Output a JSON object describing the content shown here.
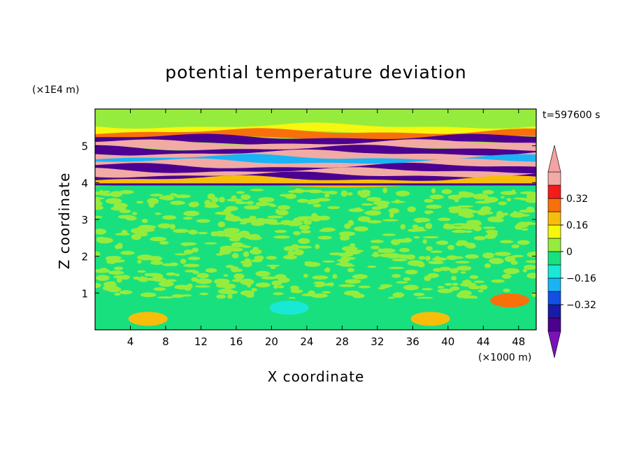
{
  "chart_data": {
    "type": "heatmap",
    "title": "potential temperature deviation",
    "xlabel": "X coordinate",
    "ylabel": "Z coordinate",
    "x_unit": "(×1000 m)",
    "y_unit": "(×1E4 m)",
    "time_label": "t=597600 s",
    "xlim": [
      0,
      50
    ],
    "ylim": [
      0,
      6
    ],
    "x_ticks": [
      4,
      8,
      12,
      16,
      20,
      24,
      28,
      32,
      36,
      40,
      44,
      48
    ],
    "x_tick_labels": [
      "4",
      "8",
      "12",
      "16",
      "20",
      "24",
      "28",
      "32",
      "36",
      "40",
      "44",
      "48"
    ],
    "y_ticks": [
      1,
      2,
      3,
      4,
      5
    ],
    "y_tick_labels": [
      "1",
      "2",
      "3",
      "4",
      "5"
    ],
    "colorbar": {
      "levels": [
        -0.48,
        -0.4,
        -0.32,
        -0.24,
        -0.16,
        -0.08,
        0,
        0.08,
        0.16,
        0.24,
        0.32,
        0.4,
        0.48
      ],
      "colors": [
        "#7a12b8",
        "#4b0090",
        "#1a1aa8",
        "#1150e6",
        "#19b4f5",
        "#19e8d6",
        "#19e07e",
        "#96ec3c",
        "#f6f60e",
        "#f8bd0a",
        "#f8700a",
        "#f21c1c",
        "#f2aaa4",
        "#f4a2a2"
      ],
      "labels": [
        {
          "value": 0.32,
          "text": "0.32"
        },
        {
          "value": 0.16,
          "text": "0.16"
        },
        {
          "value": 0,
          "text": "0"
        },
        {
          "value": -0.16,
          "text": "−0.16"
        },
        {
          "value": -0.32,
          "text": "−0.32"
        }
      ]
    },
    "fields": {
      "background": "#96ec3c",
      "lower_band": "#19e07e",
      "upper_band_stripes": [
        {
          "z": 5.45,
          "value": 0.08
        },
        {
          "z": 5.3,
          "value": 0.28
        },
        {
          "z": 5.15,
          "value": -0.44
        },
        {
          "z": 5.0,
          "value": 0.44
        },
        {
          "z": 4.85,
          "value": -0.44
        },
        {
          "z": 4.72,
          "value": 0.44
        },
        {
          "z": 4.6,
          "value": -0.2
        },
        {
          "z": 4.48,
          "value": 0.44
        },
        {
          "z": 4.36,
          "value": -0.44
        },
        {
          "z": 4.24,
          "value": 0.44
        },
        {
          "z": 4.12,
          "value": -0.44
        },
        {
          "z": 4.02,
          "value": 0.2
        }
      ],
      "notes": [
        {
          "x": 6,
          "z": 0.3,
          "value": 0.16
        },
        {
          "x": 38,
          "z": 0.3,
          "value": 0.16
        },
        {
          "x": 22,
          "z": 0.6,
          "value": -0.12
        },
        {
          "x": 47,
          "z": 0.8,
          "value": 0.24
        }
      ]
    }
  }
}
